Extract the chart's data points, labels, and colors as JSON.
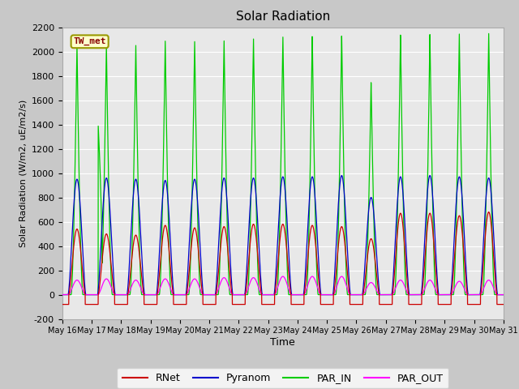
{
  "title": "Solar Radiation",
  "ylabel": "Solar Radiation (W/m2, uE/m2/s)",
  "xlabel": "Time",
  "ylim": [
    -200,
    2200
  ],
  "xlim": [
    0,
    15
  ],
  "fig_bg_color": "#c8c8c8",
  "plot_bg_color": "#e8e8e8",
  "station_label": "TW_met",
  "station_label_color": "#880000",
  "station_label_bg": "#ffffcc",
  "station_label_border": "#999900",
  "xtick_labels": [
    "May 16",
    "May 17",
    "May 18",
    "May 19",
    "May 20",
    "May 21",
    "May 22",
    "May 23",
    "May 24",
    "May 25",
    "May 26",
    "May 27",
    "May 28",
    "May 29",
    "May 30",
    "May 31"
  ],
  "legend_entries": [
    "RNet",
    "Pyranom",
    "PAR_IN",
    "PAR_OUT"
  ],
  "line_colors": {
    "RNet": "#cc0000",
    "Pyranom": "#0000cc",
    "PAR_IN": "#00cc00",
    "PAR_OUT": "#ff00ff"
  },
  "n_days": 15,
  "ytick_values": [
    -200,
    0,
    200,
    400,
    600,
    800,
    1000,
    1200,
    1400,
    1600,
    1800,
    2000,
    2200
  ],
  "par_in_peaks": [
    2060,
    2060,
    2060,
    2100,
    2100,
    2110,
    2130,
    2150,
    2150,
    2150,
    1760,
    2150,
    2150,
    2150,
    2150
  ],
  "pyranom_peaks": [
    950,
    960,
    950,
    940,
    950,
    960,
    960,
    970,
    970,
    980,
    800,
    970,
    980,
    970,
    960
  ],
  "rnet_peaks": [
    540,
    500,
    490,
    570,
    550,
    560,
    580,
    580,
    570,
    560,
    460,
    670,
    670,
    650,
    680
  ],
  "par_out_peaks": [
    120,
    130,
    120,
    130,
    130,
    140,
    140,
    150,
    150,
    150,
    100,
    120,
    120,
    110,
    120
  ]
}
